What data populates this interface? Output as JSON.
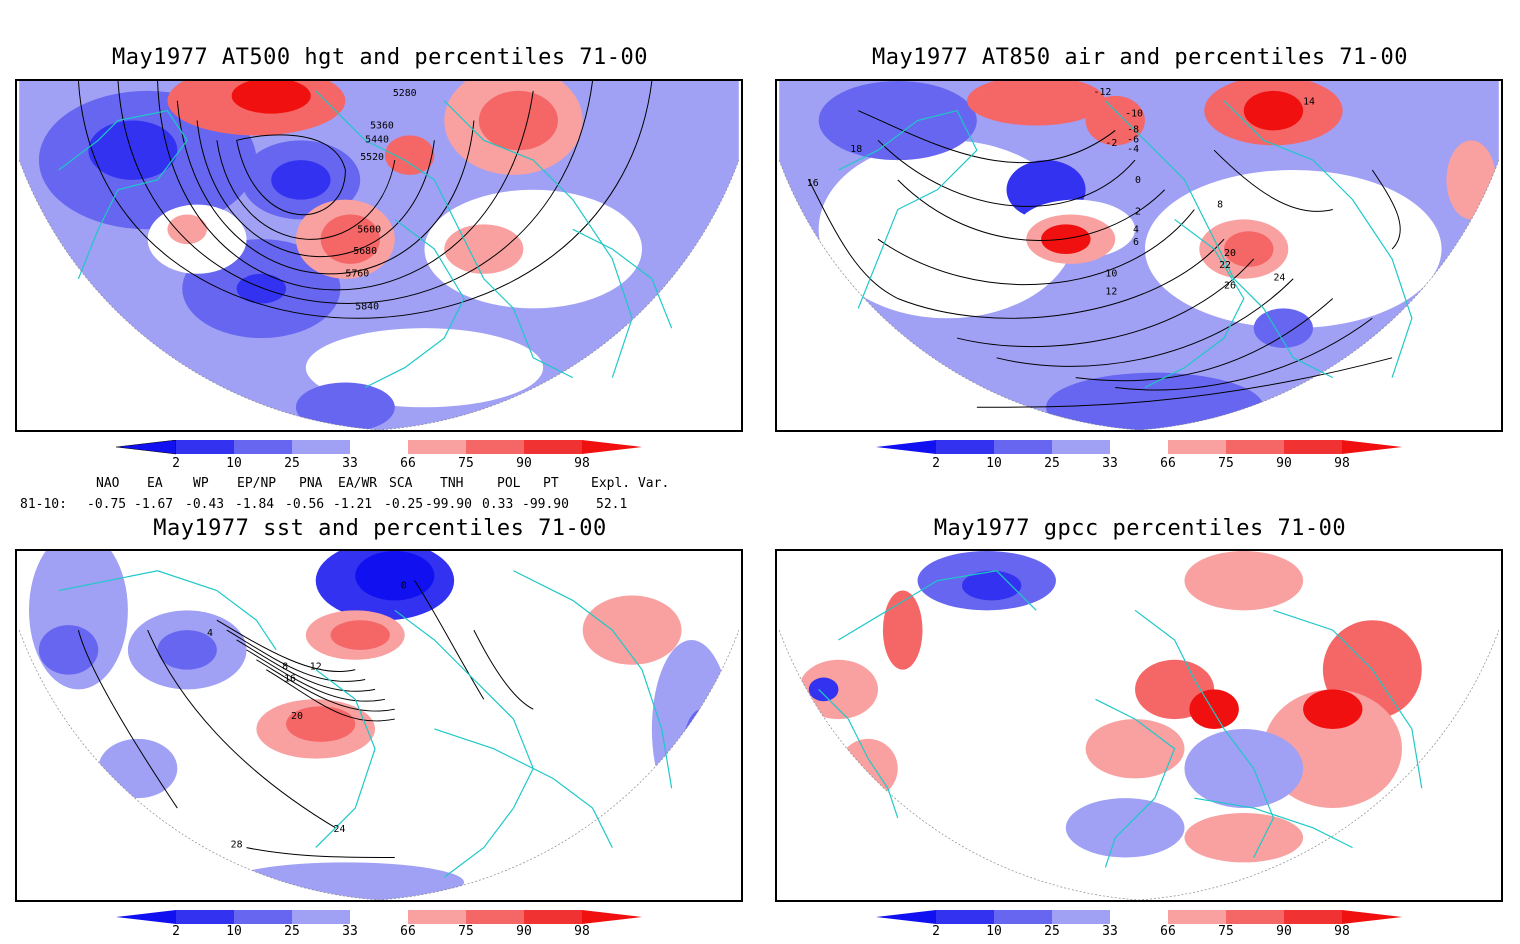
{
  "panels": [
    {
      "title": "May1977 AT500 hgt and percentiles 71-00",
      "contour_labels": [
        "5280",
        "5360",
        "5440",
        "5520",
        "5600",
        "5680",
        "5760",
        "5840"
      ]
    },
    {
      "title": "May1977 AT850 air and percentiles 71-00",
      "contour_labels": [
        "-12",
        "-10",
        "-8",
        "-6",
        "-4",
        "-2",
        "0",
        "2",
        "4",
        "6",
        "8",
        "10",
        "12",
        "14",
        "16",
        "18",
        "20",
        "22",
        "24",
        "26"
      ]
    },
    {
      "title": "May1977 sst and percentiles 71-00",
      "contour_labels": [
        "0",
        "4",
        "8",
        "12",
        "16",
        "20",
        "24",
        "28"
      ]
    },
    {
      "title": "May1977 gpcc percentiles 71-00",
      "contour_labels": []
    }
  ],
  "colorbar": {
    "labels": [
      "2",
      "10",
      "25",
      "33",
      "66",
      "75",
      "90",
      "98"
    ],
    "colors": [
      "#1010f0",
      "#3232f0",
      "#6666f0",
      "#a0a0f5",
      "#ffffff",
      "#f9a0a0",
      "#f56666",
      "#f03232",
      "#f01010"
    ]
  },
  "indices": {
    "headers": [
      "NAO",
      "EA",
      "WP",
      "EP/NP",
      "PNA",
      "EA/WR",
      "SCA",
      "TNH",
      "POL",
      "PT",
      "Expl. Var."
    ],
    "row_label": "81-10:",
    "values": [
      "-0.75",
      "-1.67",
      "-0.43",
      "-1.84",
      "-0.56",
      "-1.21",
      "-0.25",
      "-99.90",
      "0.33",
      "-99.90",
      "52.1"
    ]
  }
}
